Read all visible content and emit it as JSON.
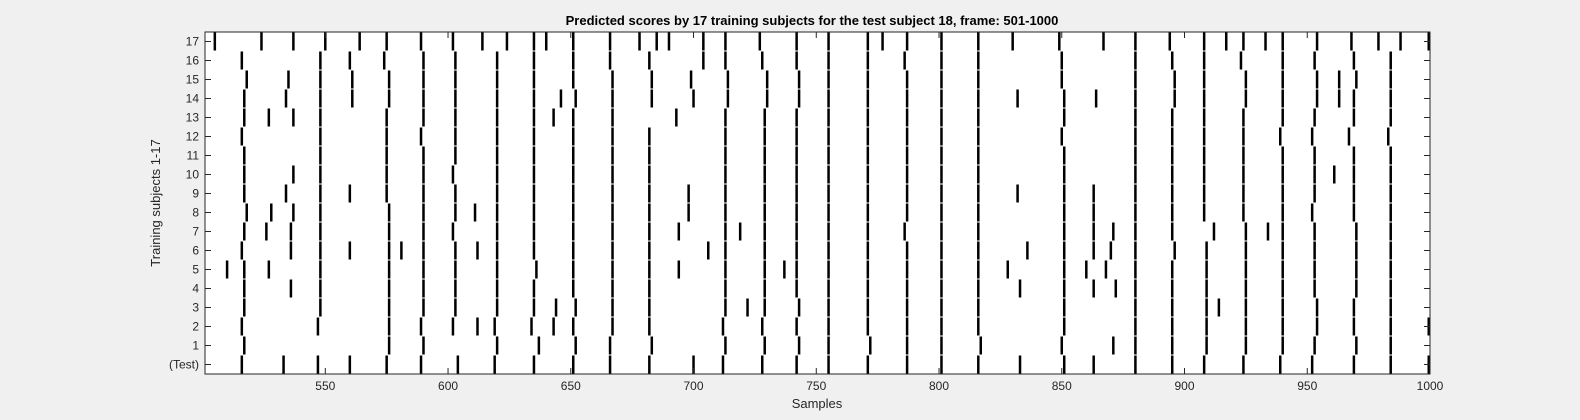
{
  "chart_data": {
    "type": "heatmap",
    "title": "Predicted scores by 17 training subjects for the test subject 18, frame: 501-1000",
    "xlabel": "Samples",
    "ylabel": "Training subjects 1-17",
    "xlim": [
      501,
      1000
    ],
    "xticks": [
      550,
      600,
      650,
      700,
      750,
      800,
      850,
      900,
      950,
      1000
    ],
    "rows": [
      "(Test)",
      "1",
      "2",
      "3",
      "4",
      "5",
      "6",
      "7",
      "8",
      "9",
      "10",
      "11",
      "12",
      "13",
      "14",
      "15",
      "16",
      "17"
    ],
    "mark_color": "#000000",
    "background_color": "#ffffff",
    "marks": {
      "(Test)": [
        516,
        533,
        547,
        560,
        575,
        589,
        604,
        619,
        635,
        651,
        666,
        682,
        700,
        712,
        728,
        742,
        755,
        771,
        787,
        801,
        816,
        833,
        851,
        863,
        880,
        895,
        908,
        924,
        939,
        952,
        969,
        984,
        1000
      ],
      "1": [
        517,
        576,
        590,
        620,
        637,
        652,
        666,
        683,
        713,
        729,
        743,
        755,
        772,
        787,
        801,
        817,
        850,
        871,
        880,
        895,
        909,
        925,
        940,
        953,
        970,
        984
      ],
      "2": [
        516,
        547,
        576,
        589,
        602,
        612,
        619,
        634,
        643,
        651,
        667,
        682,
        712,
        728,
        742,
        755,
        771,
        787,
        801,
        816,
        851,
        880,
        895,
        909,
        925,
        940,
        954,
        969,
        984,
        1000
      ],
      "3": [
        517,
        548,
        576,
        590,
        603,
        620,
        635,
        644,
        652,
        667,
        682,
        713,
        722,
        729,
        743,
        755,
        771,
        787,
        801,
        816,
        851,
        880,
        895,
        909,
        914,
        925,
        940,
        954,
        969,
        984
      ],
      "4": [
        517,
        536,
        548,
        576,
        590,
        603,
        620,
        635,
        651,
        667,
        682,
        713,
        729,
        742,
        755,
        771,
        787,
        801,
        816,
        833,
        851,
        863,
        872,
        880,
        895,
        909,
        925,
        940,
        953,
        970,
        984
      ],
      "5": [
        510,
        517,
        527,
        548,
        576,
        590,
        603,
        620,
        636,
        651,
        667,
        682,
        694,
        713,
        729,
        737,
        742,
        755,
        771,
        787,
        801,
        816,
        828,
        851,
        860,
        868,
        880,
        895,
        909,
        925,
        940,
        953,
        970,
        984
      ],
      "6": [
        516,
        536,
        548,
        560,
        576,
        581,
        590,
        603,
        612,
        620,
        635,
        651,
        667,
        682,
        706,
        713,
        729,
        742,
        755,
        771,
        787,
        801,
        816,
        836,
        851,
        863,
        870,
        880,
        896,
        909,
        925,
        940,
        953,
        970,
        984
      ],
      "7": [
        517,
        526,
        536,
        548,
        576,
        590,
        602,
        620,
        635,
        651,
        667,
        682,
        694,
        713,
        719,
        729,
        742,
        755,
        771,
        786,
        801,
        816,
        851,
        863,
        871,
        880,
        895,
        912,
        925,
        934,
        940,
        953,
        970,
        984
      ],
      "8": [
        518,
        528,
        537,
        548,
        576,
        590,
        603,
        611,
        620,
        635,
        651,
        667,
        682,
        698,
        713,
        729,
        742,
        755,
        771,
        787,
        801,
        816,
        851,
        863,
        880,
        895,
        908,
        924,
        940,
        952,
        969,
        984
      ],
      "9": [
        517,
        534,
        548,
        560,
        575,
        590,
        603,
        620,
        635,
        651,
        667,
        682,
        698,
        713,
        729,
        742,
        755,
        771,
        787,
        801,
        816,
        832,
        851,
        863,
        880,
        895,
        908,
        924,
        940,
        953,
        969,
        984
      ],
      "10": [
        517,
        537,
        548,
        575,
        590,
        602,
        620,
        635,
        651,
        667,
        682,
        713,
        729,
        742,
        755,
        771,
        787,
        801,
        816,
        851,
        880,
        895,
        908,
        924,
        940,
        953,
        961,
        969,
        984
      ],
      "11": [
        517,
        548,
        575,
        590,
        603,
        620,
        635,
        651,
        667,
        682,
        713,
        729,
        742,
        755,
        771,
        787,
        801,
        816,
        851,
        880,
        895,
        908,
        924,
        940,
        953,
        969,
        984
      ],
      "12": [
        516,
        548,
        575,
        589,
        603,
        620,
        635,
        651,
        667,
        682,
        713,
        729,
        742,
        755,
        771,
        787,
        801,
        816,
        850,
        880,
        895,
        908,
        924,
        939,
        952,
        967,
        983
      ],
      "13": [
        517,
        527,
        537,
        548,
        575,
        590,
        603,
        620,
        635,
        643,
        651,
        667,
        693,
        713,
        729,
        742,
        755,
        771,
        787,
        801,
        816,
        851,
        880,
        895,
        908,
        924,
        940,
        953,
        969,
        984
      ],
      "14": [
        517,
        534,
        548,
        561,
        576,
        590,
        603,
        620,
        635,
        646,
        652,
        667,
        683,
        700,
        714,
        730,
        743,
        755,
        771,
        787,
        801,
        816,
        832,
        851,
        864,
        880,
        896,
        908,
        925,
        940,
        954,
        963,
        969,
        984
      ],
      "15": [
        518,
        535,
        548,
        561,
        576,
        590,
        603,
        620,
        635,
        651,
        667,
        683,
        699,
        714,
        730,
        743,
        755,
        771,
        787,
        801,
        816,
        850,
        880,
        896,
        908,
        925,
        940,
        954,
        963,
        970,
        984
      ],
      "16": [
        516,
        548,
        560,
        574,
        590,
        603,
        620,
        635,
        651,
        666,
        682,
        704,
        713,
        728,
        742,
        755,
        771,
        786,
        801,
        816,
        850,
        880,
        895,
        908,
        923,
        940,
        953,
        969,
        984
      ],
      "17": [
        505,
        524,
        537,
        550,
        564,
        575,
        589,
        602,
        614,
        624,
        635,
        640,
        651,
        666,
        678,
        685,
        690,
        704,
        713,
        727,
        742,
        755,
        771,
        777,
        787,
        801,
        816,
        830,
        849,
        867,
        880,
        894,
        908,
        917,
        924,
        933,
        940,
        954,
        968,
        979,
        988,
        1000
      ]
    }
  }
}
